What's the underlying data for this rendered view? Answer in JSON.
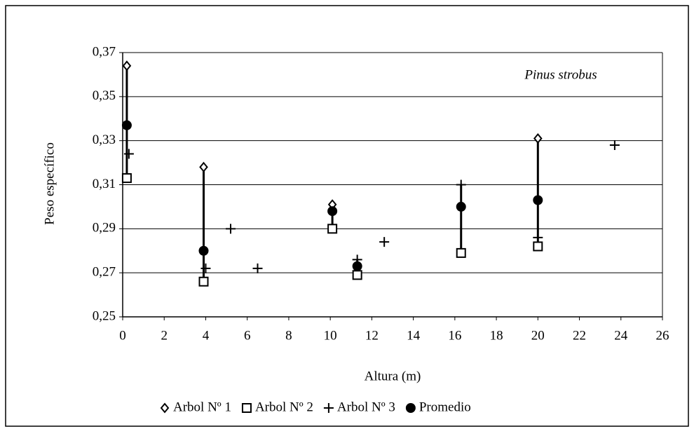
{
  "chart_data": {
    "type": "scatter",
    "annotation": "Pinus strobus",
    "x_label": "Altura (m)",
    "y_label": "Peso específico",
    "xlim": [
      0,
      26
    ],
    "xticks": [
      0,
      2,
      4,
      6,
      8,
      10,
      12,
      14,
      16,
      18,
      20,
      22,
      24,
      26
    ],
    "ylim": [
      0.25,
      0.37
    ],
    "yticks": [
      {
        "value": 0.25,
        "label": "0,25"
      },
      {
        "value": 0.27,
        "label": "0,27"
      },
      {
        "value": 0.29,
        "label": "0,29"
      },
      {
        "value": 0.31,
        "label": "0,31"
      },
      {
        "value": 0.33,
        "label": "0,33"
      },
      {
        "value": 0.35,
        "label": "0,35"
      },
      {
        "value": 0.37,
        "label": "0,37"
      }
    ],
    "grid": true,
    "series": [
      {
        "name": "Arbol Nº 1",
        "marker": "diamond",
        "color": "#000000",
        "x": [
          0.2,
          3.9,
          10.1,
          20.0
        ],
        "values": [
          0.364,
          0.318,
          0.301,
          0.331
        ]
      },
      {
        "name": "Arbol Nº 2",
        "marker": "square",
        "color": "#000000",
        "x": [
          0.2,
          3.9,
          10.1,
          11.3,
          16.3,
          20.0
        ],
        "values": [
          0.313,
          0.266,
          0.29,
          0.269,
          0.279,
          0.282
        ]
      },
      {
        "name": "Arbol Nº 3",
        "marker": "plus",
        "color": "#000000",
        "x": [
          0.3,
          4.0,
          5.2,
          6.5,
          11.3,
          12.6,
          16.3,
          20.0,
          23.7
        ],
        "values": [
          0.324,
          0.272,
          0.29,
          0.272,
          0.276,
          0.284,
          0.31,
          0.286,
          0.328
        ]
      },
      {
        "name": "Promedio",
        "marker": "circle",
        "color": "#000000",
        "x": [
          0.2,
          3.9,
          10.1,
          11.3,
          16.3,
          20.0
        ],
        "values": [
          0.337,
          0.28,
          0.298,
          0.273,
          0.3,
          0.303
        ]
      }
    ]
  }
}
